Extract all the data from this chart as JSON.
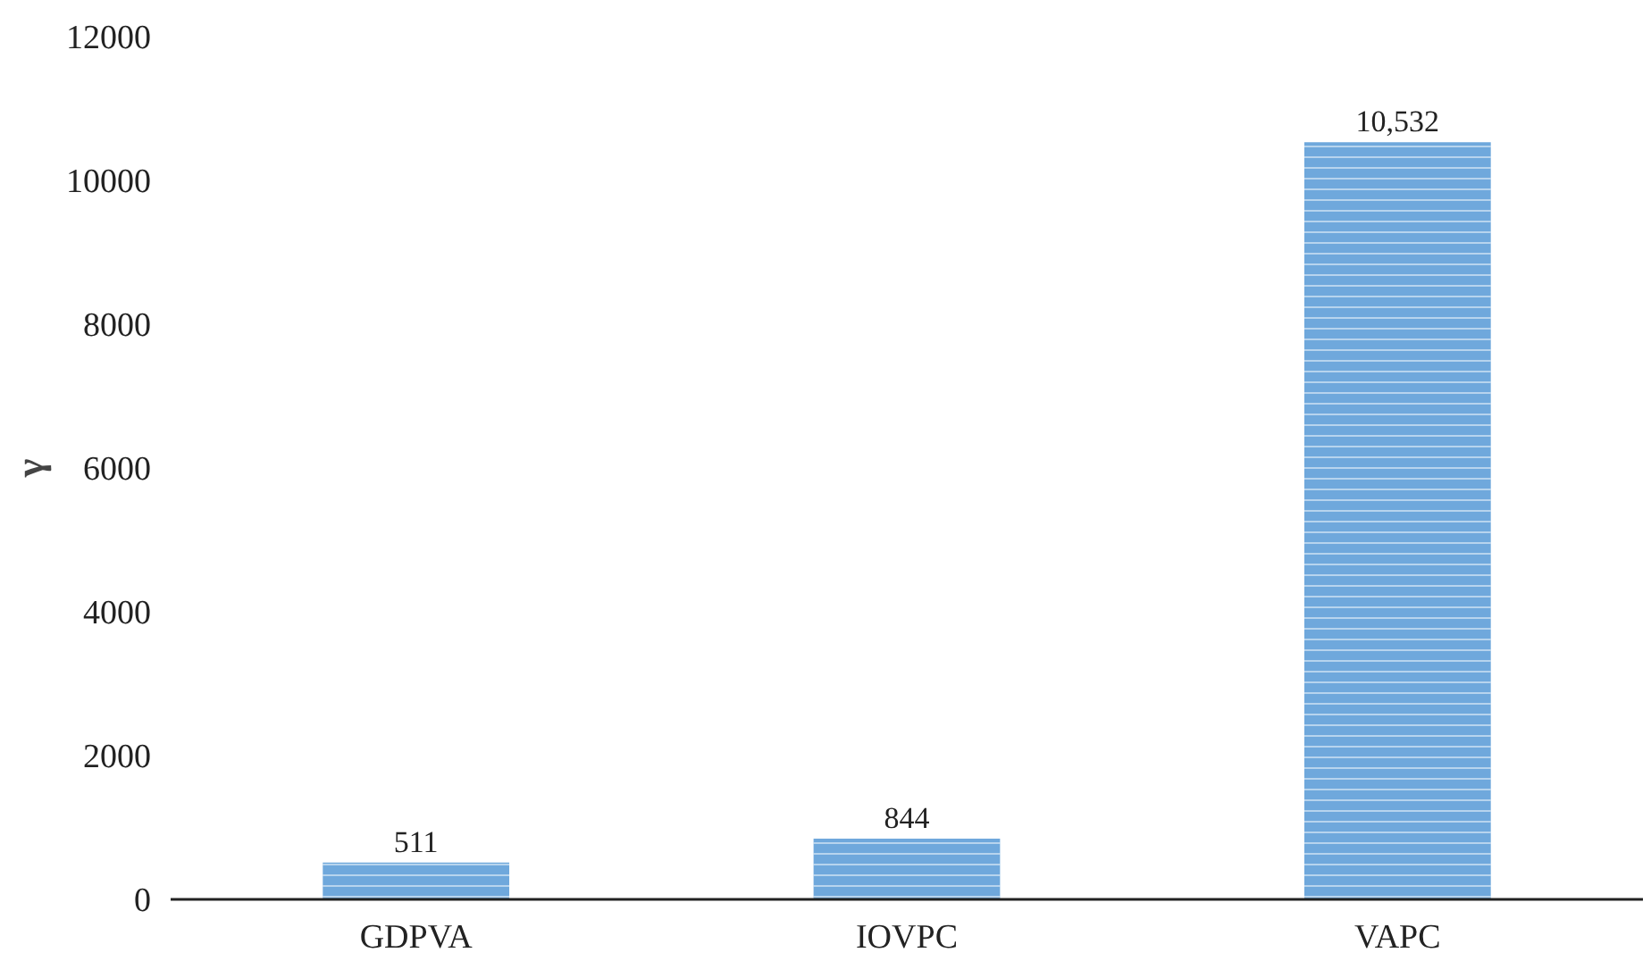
{
  "chart_data": {
    "type": "bar",
    "ylabel": "γ",
    "categories": [
      "GDPVA",
      "IOVPC",
      "VAPC"
    ],
    "values": [
      511,
      844,
      10532
    ],
    "value_labels": [
      "511",
      "844",
      "10,532"
    ],
    "color": "#6fa8dc",
    "ylim": [
      0,
      12000
    ],
    "yticks": [
      0,
      2000,
      4000,
      6000,
      8000,
      10000,
      12000
    ],
    "grid": false
  }
}
